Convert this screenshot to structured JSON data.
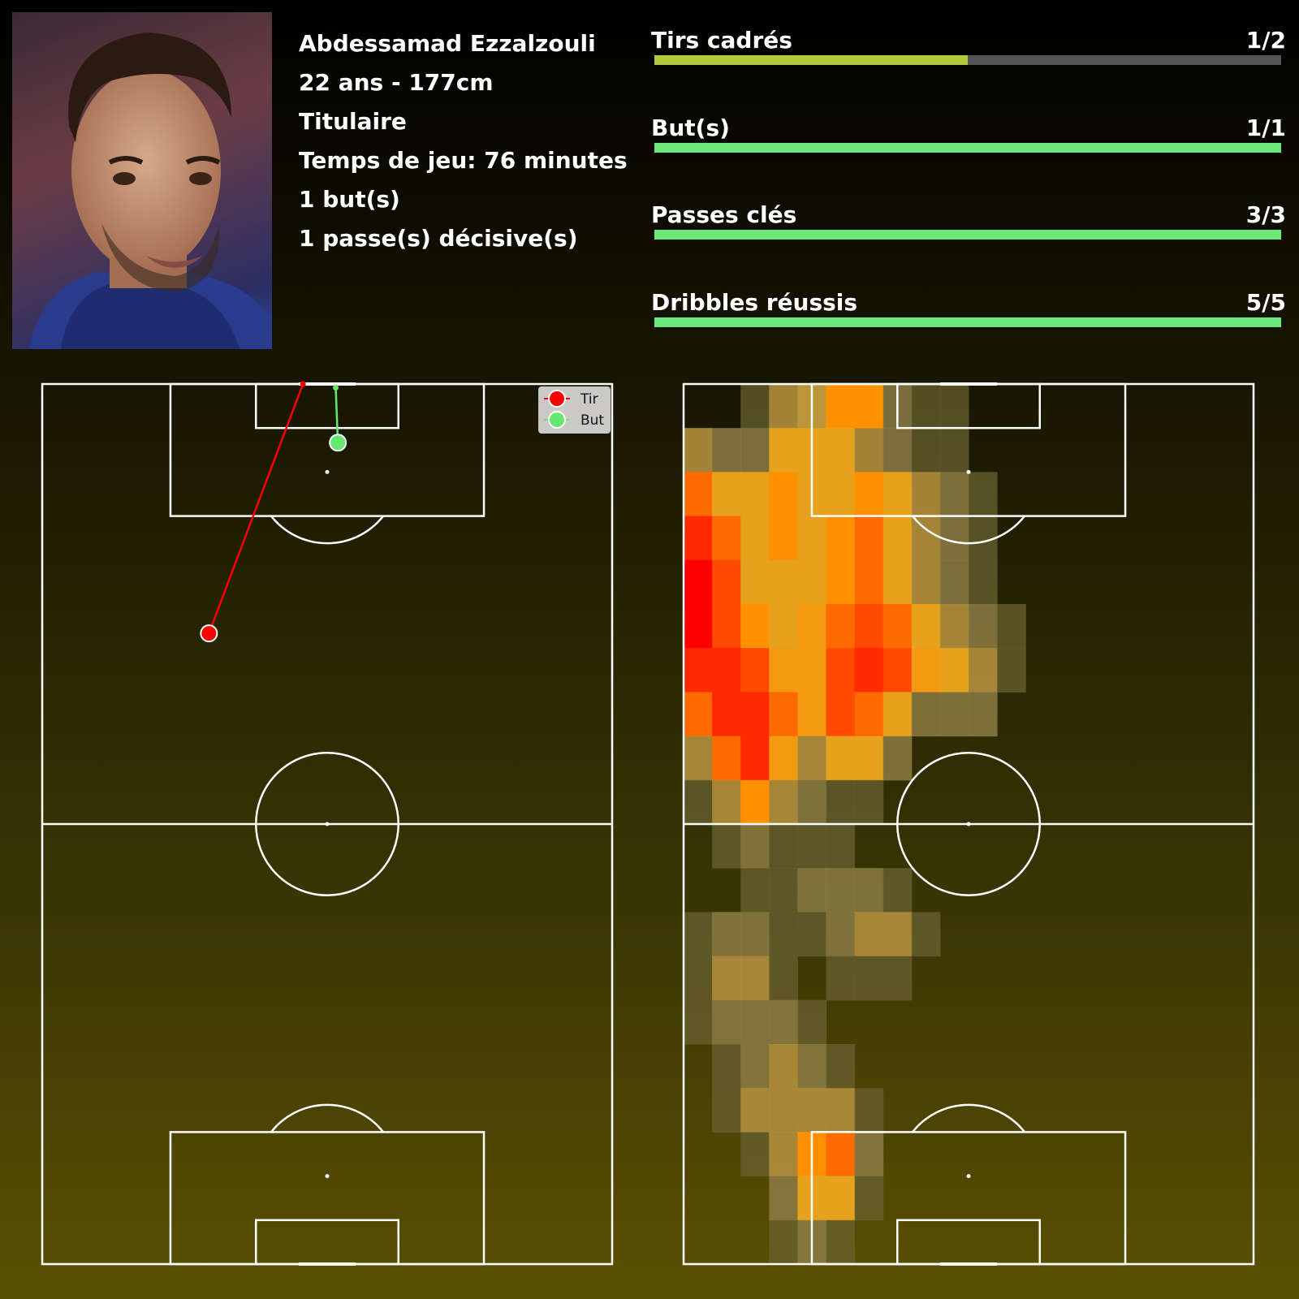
{
  "player": {
    "name": "Abdessamad Ezzalzouli",
    "age_height": "22 ans - 177cm",
    "status": "Titulaire",
    "playing_time": "Temps de jeu: 76 minutes",
    "goals": "1 but(s)",
    "assists": "1 passe(s) décisive(s)"
  },
  "stats": [
    {
      "label": "Tirs cadrés",
      "value": "1/2",
      "made": 1,
      "total": 2,
      "color": "#b5c93d"
    },
    {
      "label": "But(s)",
      "value": "1/1",
      "made": 1,
      "total": 1,
      "color": "#6ee77a"
    },
    {
      "label": "Passes clés",
      "value": "3/3",
      "made": 3,
      "total": 3,
      "color": "#6ee77a"
    },
    {
      "label": "Dribbles réussis",
      "value": "5/5",
      "made": 5,
      "total": 5,
      "color": "#6ee77a"
    }
  ],
  "chart_data": [
    {
      "type": "scatter",
      "title": "",
      "legend": {
        "placement": "top-right",
        "entries": [
          "Tir",
          "But"
        ]
      },
      "pitch": {
        "length": 120,
        "width": 80
      },
      "series": [
        {
          "name": "Tir",
          "color": "#ff0000",
          "points": [
            {
              "x": 23.4,
              "y": 86.0,
              "end_x": 36.6,
              "end_y": 120.0
            }
          ]
        },
        {
          "name": "But",
          "color": "#66e86f",
          "points": [
            {
              "x": 41.5,
              "y": 112.0,
              "end_x": 41.2,
              "end_y": 119.5
            }
          ]
        }
      ]
    },
    {
      "type": "heatmap",
      "title": "",
      "grid": {
        "cols": 20,
        "rows": 20
      },
      "cells": [
        [
          0,
          0,
          1,
          3,
          4,
          7,
          7,
          2,
          1,
          1,
          0,
          0,
          0,
          0,
          0,
          0,
          0,
          0,
          0,
          0
        ],
        [
          3,
          2,
          2,
          5,
          5,
          5,
          3,
          2,
          1,
          1,
          0,
          0,
          0,
          0,
          0,
          0,
          0,
          0,
          0,
          0
        ],
        [
          8,
          5,
          5,
          7,
          5,
          5,
          7,
          5,
          3,
          2,
          1,
          0,
          0,
          0,
          0,
          0,
          0,
          0,
          0,
          0
        ],
        [
          10,
          8,
          5,
          7,
          5,
          7,
          8,
          5,
          3,
          2,
          1,
          0,
          0,
          0,
          0,
          0,
          0,
          0,
          0,
          0
        ],
        [
          11,
          9,
          5,
          5,
          5,
          7,
          8,
          5,
          3,
          2,
          1,
          0,
          0,
          0,
          0,
          0,
          0,
          0,
          0,
          0
        ],
        [
          11,
          9,
          7,
          5,
          6,
          8,
          9,
          8,
          5,
          3,
          2,
          1,
          0,
          0,
          0,
          0,
          0,
          0,
          0,
          0
        ],
        [
          10,
          10,
          9,
          6,
          6,
          9,
          10,
          9,
          6,
          5,
          3,
          1,
          0,
          0,
          0,
          0,
          0,
          0,
          0,
          0
        ],
        [
          8,
          10,
          10,
          8,
          6,
          9,
          8,
          5,
          2,
          2,
          2,
          0,
          0,
          0,
          0,
          0,
          0,
          0,
          0,
          0
        ],
        [
          3,
          8,
          10,
          6,
          3,
          5,
          5,
          2,
          0,
          0,
          0,
          0,
          0,
          0,
          0,
          0,
          0,
          0,
          0,
          0
        ],
        [
          1,
          3,
          7,
          3,
          2,
          1,
          1,
          0,
          0,
          0,
          0,
          0,
          0,
          0,
          0,
          0,
          0,
          0,
          0,
          0
        ],
        [
          0,
          1,
          2,
          1,
          1,
          1,
          0,
          0,
          0,
          0,
          0,
          0,
          0,
          0,
          0,
          0,
          0,
          0,
          0,
          0
        ],
        [
          0,
          0,
          1,
          1,
          2,
          2,
          2,
          1,
          0,
          0,
          0,
          0,
          0,
          0,
          0,
          0,
          0,
          0,
          0,
          0
        ],
        [
          1,
          2,
          2,
          1,
          1,
          2,
          3,
          3,
          1,
          0,
          0,
          0,
          0,
          0,
          0,
          0,
          0,
          0,
          0,
          0
        ],
        [
          1,
          3,
          3,
          1,
          0,
          1,
          1,
          1,
          0,
          0,
          0,
          0,
          0,
          0,
          0,
          0,
          0,
          0,
          0,
          0
        ],
        [
          1,
          2,
          2,
          2,
          1,
          0,
          0,
          0,
          0,
          0,
          0,
          0,
          0,
          0,
          0,
          0,
          0,
          0,
          0,
          0
        ],
        [
          0,
          1,
          2,
          3,
          2,
          1,
          0,
          0,
          0,
          0,
          0,
          0,
          0,
          0,
          0,
          0,
          0,
          0,
          0,
          0
        ],
        [
          0,
          1,
          3,
          3,
          3,
          3,
          1,
          0,
          0,
          0,
          0,
          0,
          0,
          0,
          0,
          0,
          0,
          0,
          0,
          0
        ],
        [
          0,
          0,
          1,
          3,
          7,
          8,
          2,
          0,
          0,
          0,
          0,
          0,
          0,
          0,
          0,
          0,
          0,
          0,
          0,
          0
        ],
        [
          0,
          0,
          0,
          2,
          5,
          5,
          1,
          0,
          0,
          0,
          0,
          0,
          0,
          0,
          0,
          0,
          0,
          0,
          0,
          0
        ],
        [
          0,
          0,
          0,
          1,
          2,
          1,
          0,
          0,
          0,
          0,
          0,
          0,
          0,
          0,
          0,
          0,
          0,
          0,
          0,
          0
        ]
      ]
    }
  ]
}
